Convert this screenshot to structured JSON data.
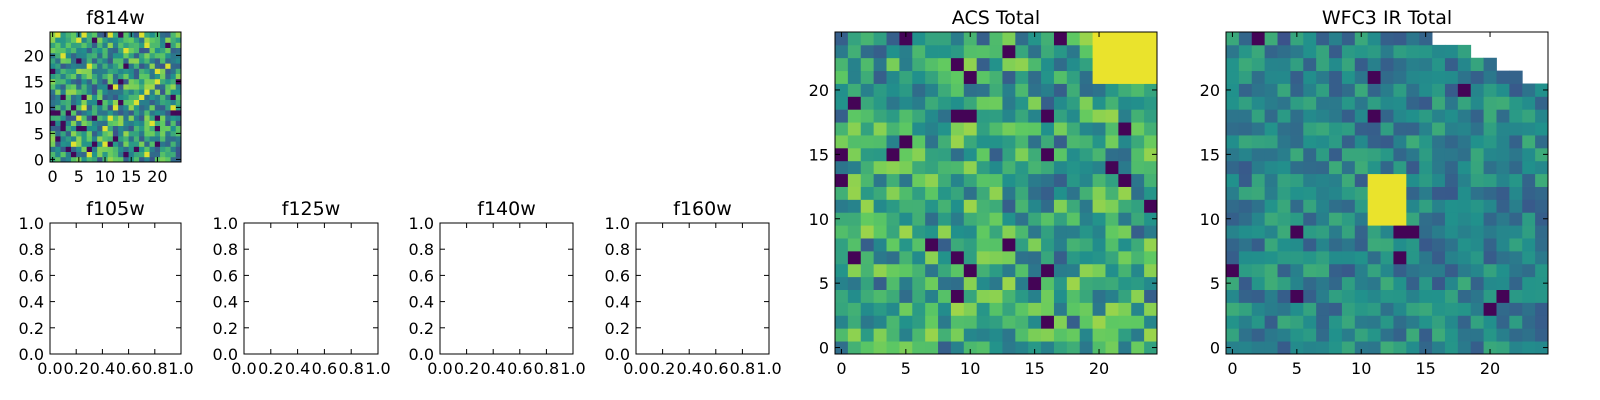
{
  "figure": {
    "background": "#ffffff",
    "colormap": "viridis",
    "colormap_stops": [
      "#440154",
      "#3b528b",
      "#21918c",
      "#5ec962",
      "#fde725"
    ]
  },
  "chart_data": [
    {
      "id": "f814w",
      "type": "heatmap",
      "title": "f814w",
      "xlim": [
        -0.5,
        24.5
      ],
      "ylim": [
        -0.5,
        24.5
      ],
      "xticks": [
        0,
        5,
        10,
        15,
        20
      ],
      "yticks": [
        0,
        5,
        10,
        15,
        20
      ],
      "grid_size": [
        25,
        25
      ],
      "values": "25x25 image, mostly green-yellow noise with scattered dark pixels",
      "grid": false
    },
    {
      "id": "f105w",
      "type": "heatmap",
      "title": "f105w",
      "xlim": [
        0.0,
        1.0
      ],
      "ylim": [
        0.0,
        1.0
      ],
      "xticks": [
        "0.0",
        "0.2",
        "0.4",
        "0.6",
        "0.8",
        "1.0"
      ],
      "yticks": [
        "0.0",
        "0.2",
        "0.4",
        "0.6",
        "0.8",
        "1.0"
      ],
      "values": [],
      "grid": false
    },
    {
      "id": "f125w",
      "type": "heatmap",
      "title": "f125w",
      "xlim": [
        0.0,
        1.0
      ],
      "ylim": [
        0.0,
        1.0
      ],
      "xticks": [
        "0.0",
        "0.2",
        "0.4",
        "0.6",
        "0.8",
        "1.0"
      ],
      "yticks": [
        "0.0",
        "0.2",
        "0.4",
        "0.6",
        "0.8",
        "1.0"
      ],
      "values": [],
      "grid": false
    },
    {
      "id": "f140w",
      "type": "heatmap",
      "title": "f140w",
      "xlim": [
        0.0,
        1.0
      ],
      "ylim": [
        0.0,
        1.0
      ],
      "xticks": [
        "0.0",
        "0.2",
        "0.4",
        "0.6",
        "0.8",
        "1.0"
      ],
      "yticks": [
        "0.0",
        "0.2",
        "0.4",
        "0.6",
        "0.8",
        "1.0"
      ],
      "values": [],
      "grid": false
    },
    {
      "id": "f160w",
      "type": "heatmap",
      "title": "f160w",
      "xlim": [
        0.0,
        1.0
      ],
      "ylim": [
        0.0,
        1.0
      ],
      "xticks": [
        "0.0",
        "0.2",
        "0.4",
        "0.6",
        "0.8",
        "1.0"
      ],
      "yticks": [
        "0.0",
        "0.2",
        "0.4",
        "0.6",
        "0.8",
        "1.0"
      ],
      "values": [],
      "grid": false
    },
    {
      "id": "acs",
      "type": "heatmap",
      "title": "ACS Total",
      "xlim": [
        -0.5,
        24.5
      ],
      "ylim": [
        -0.5,
        24.5
      ],
      "xticks": [
        0,
        5,
        10,
        15,
        20
      ],
      "yticks": [
        0,
        5,
        10,
        15,
        20
      ],
      "grid_size": [
        25,
        25
      ],
      "values": "25x25 image, green/teal noise, bright yellow patch top-right, scattered dark pixels",
      "grid": false
    },
    {
      "id": "wfc3",
      "type": "heatmap",
      "title": "WFC3 IR Total",
      "xlim": [
        -0.5,
        24.5
      ],
      "ylim": [
        -0.5,
        24.5
      ],
      "xticks": [
        0,
        5,
        10,
        15,
        20
      ],
      "yticks": [
        0,
        5,
        10,
        15,
        20
      ],
      "grid_size": [
        25,
        25
      ],
      "values": "25x25 image, teal/green noise, yellow blob near (12,11), empty (white) stair-stepped top-right corner",
      "grid": false
    }
  ]
}
